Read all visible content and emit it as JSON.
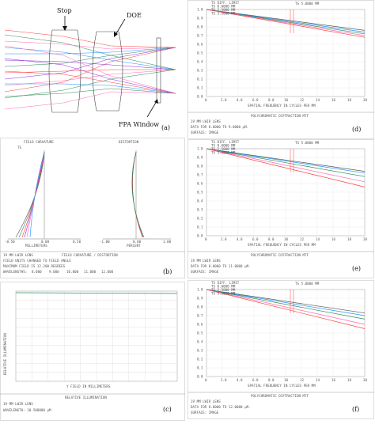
{
  "panel_a": {
    "label": "(a)",
    "stop_label": "Stop",
    "doe_label": "DOE",
    "window_label": "FPA Window"
  },
  "panel_b": {
    "label": "(b)",
    "field_curvature_title": "FIELD CURVATURE",
    "distortion_title": "DISTORTION",
    "ts_legend": "TS",
    "curv_axis": "MILLIMETERS",
    "curv_ticks": [
      "-0.50",
      "0.00",
      "0.50"
    ],
    "dist_axis": "PERCENT",
    "dist_ticks": [
      "-1.00",
      "0.00",
      "1.00"
    ],
    "footer_title": "FIELD CURVATURE / DISTORTION",
    "lens": "19 MM LWIR LENS",
    "note1": "FIELD UNITS CHANGED TO FIELD ANGLE",
    "note2": "MAXIMUM FIELD IS 12.200 DEGREES",
    "wavelength_label": "WAVELENGTHS:",
    "wavelengths": [
      {
        "text": "8.000",
        "color": "#2e8b57"
      },
      {
        "text": "9.000",
        "color": "#1e90ff"
      },
      {
        "text": "10.000",
        "color": "#8a2be2"
      },
      {
        "text": "11.000",
        "color": "#ff8c00"
      },
      {
        "text": "12.000",
        "color": "#ff69b4"
      }
    ]
  },
  "panel_c": {
    "label": "(c)",
    "y_axis": "RELATIVE ILLUMINATION",
    "x_axis": "Y FIELD IN MILLIMETERS",
    "footer_title": "RELATIVE ILLUMINATION",
    "lens": "19 MM LWIR LENS",
    "wavelength": "WAVELENGTH: 10.500000 µM"
  },
  "mtf": {
    "x_axis": "SPATIAL FREQUENCY IN CYCLES PER MM",
    "x_ticks": [
      "0",
      "2.0",
      "4.0",
      "6.0",
      "8.0",
      "10",
      "12",
      "14",
      "16",
      "18",
      "20"
    ],
    "y_ticks": [
      "0.0",
      "0.1",
      "0.2",
      "0.3",
      "0.4",
      "0.5",
      "0.6",
      "0.7",
      "0.8",
      "0.9",
      "1.0"
    ],
    "footer_title": "POLYCHROMATIC DIFFRACTION MTF",
    "lens": "19 MM LWIR LENS",
    "surface": "SURFACE: IMAGE",
    "legend": [
      "TS DIFF. LIMIT",
      "TS 0.0000 MM",
      "TS 2.5000 MM",
      "TS 3.5000 MM"
    ],
    "top_right": "TS 5.0000 MM",
    "panels": [
      {
        "label": "(d)",
        "data_for": "DATA FOR 8.0000 TO 9.0000 µM.",
        "chart_data": {
          "type": "line",
          "x": [
            0,
            20
          ],
          "xlim": [
            0,
            20
          ],
          "ylim": [
            0,
            1
          ],
          "series": [
            {
              "values": [
                1.0,
                0.76
              ],
              "color": "#555555"
            },
            {
              "values": [
                1.0,
                0.74
              ],
              "color": "#1e90ff"
            },
            {
              "values": [
                1.0,
                0.72
              ],
              "color": "#2e8b57"
            },
            {
              "values": [
                1.0,
                0.7
              ],
              "color": "#ff69b4"
            },
            {
              "values": [
                1.0,
                0.68
              ],
              "color": "#ff4040"
            }
          ]
        }
      },
      {
        "label": "(e)",
        "data_for": "DATA FOR 8.0000 TO 11.0000 µM.",
        "chart_data": {
          "type": "line",
          "x": [
            0,
            20
          ],
          "xlim": [
            0,
            20
          ],
          "ylim": [
            0,
            1
          ],
          "series": [
            {
              "values": [
                1.0,
                0.74
              ],
              "color": "#555555"
            },
            {
              "values": [
                1.0,
                0.72
              ],
              "color": "#1e90ff"
            },
            {
              "values": [
                1.0,
                0.68
              ],
              "color": "#2e8b57"
            },
            {
              "values": [
                1.0,
                0.62
              ],
              "color": "#ff69b4"
            },
            {
              "values": [
                1.0,
                0.56
              ],
              "color": "#ff4040"
            }
          ]
        }
      },
      {
        "label": "(f)",
        "data_for": "DATA FOR 8.0000 TO 12.0000 µM.",
        "chart_data": {
          "type": "line",
          "x": [
            0,
            20
          ],
          "xlim": [
            0,
            20
          ],
          "ylim": [
            0,
            1
          ],
          "series": [
            {
              "values": [
                1.0,
                0.73
              ],
              "color": "#555555"
            },
            {
              "values": [
                1.0,
                0.7
              ],
              "color": "#1e90ff"
            },
            {
              "values": [
                1.0,
                0.66
              ],
              "color": "#2e8b57"
            },
            {
              "values": [
                1.0,
                0.6
              ],
              "color": "#ff69b4"
            },
            {
              "values": [
                1.0,
                0.55
              ],
              "color": "#ff4040"
            }
          ]
        }
      }
    ]
  }
}
